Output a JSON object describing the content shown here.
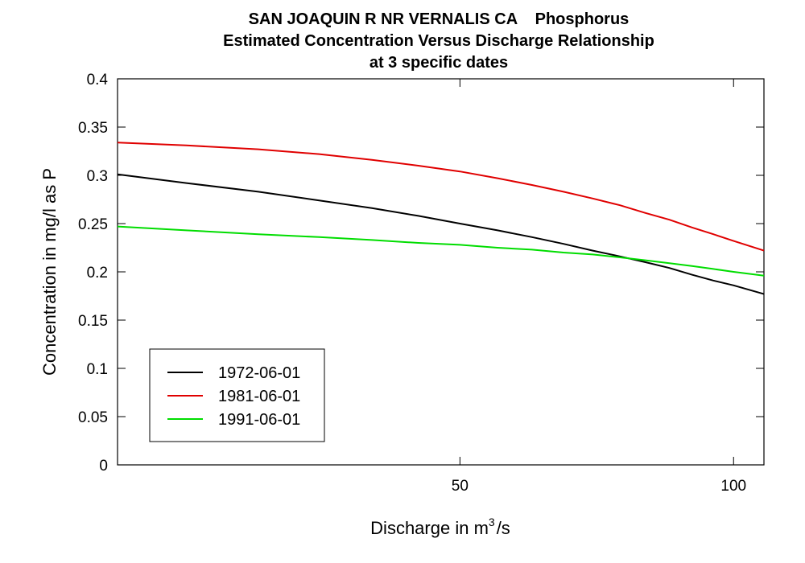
{
  "chart_data": {
    "type": "line",
    "title": [
      "SAN JOAQUIN R NR VERNALIS CA    Phosphorus",
      "Estimated Concentration Versus Discharge Relationship",
      "at 3 specific dates"
    ],
    "xlabel": "Discharge in m",
    "xlabel_sup": "3",
    "xlabel_suffix": "/s",
    "ylabel": "Concentration in mg/l as P",
    "xscale": "log",
    "xlim": [
      21,
      108
    ],
    "ylim": [
      0,
      0.4
    ],
    "xticks": [
      {
        "value": 50,
        "label": "50"
      },
      {
        "value": 100,
        "label": "100"
      }
    ],
    "yticks": [
      {
        "value": 0,
        "label": "0"
      },
      {
        "value": 0.05,
        "label": "0.05"
      },
      {
        "value": 0.1,
        "label": "0.1"
      },
      {
        "value": 0.15,
        "label": "0.15"
      },
      {
        "value": 0.2,
        "label": "0.2"
      },
      {
        "value": 0.25,
        "label": "0.25"
      },
      {
        "value": 0.3,
        "label": "0.3"
      },
      {
        "value": 0.35,
        "label": "0.35"
      },
      {
        "value": 0.4,
        "label": "0.4"
      }
    ],
    "grid": false,
    "legend_position": "bottom-left",
    "x": [
      21,
      25,
      30,
      35,
      40,
      45,
      50,
      55,
      60,
      65,
      70,
      75,
      80,
      85,
      90,
      95,
      100,
      108
    ],
    "series": [
      {
        "name": "1972-06-01",
        "color": "#000000",
        "values": [
          0.301,
          0.292,
          0.283,
          0.274,
          0.266,
          0.258,
          0.25,
          0.243,
          0.236,
          0.229,
          0.222,
          0.216,
          0.21,
          0.204,
          0.197,
          0.191,
          0.186,
          0.177
        ]
      },
      {
        "name": "1981-06-01",
        "color": "#e00000",
        "values": [
          0.334,
          0.331,
          0.327,
          0.322,
          0.316,
          0.31,
          0.304,
          0.297,
          0.29,
          0.283,
          0.276,
          0.269,
          0.261,
          0.254,
          0.246,
          0.239,
          0.232,
          0.222
        ]
      },
      {
        "name": "1991-06-01",
        "color": "#00dd00",
        "values": [
          0.247,
          0.243,
          0.239,
          0.236,
          0.233,
          0.23,
          0.228,
          0.225,
          0.223,
          0.22,
          0.218,
          0.215,
          0.212,
          0.209,
          0.206,
          0.203,
          0.2,
          0.196
        ]
      }
    ]
  }
}
